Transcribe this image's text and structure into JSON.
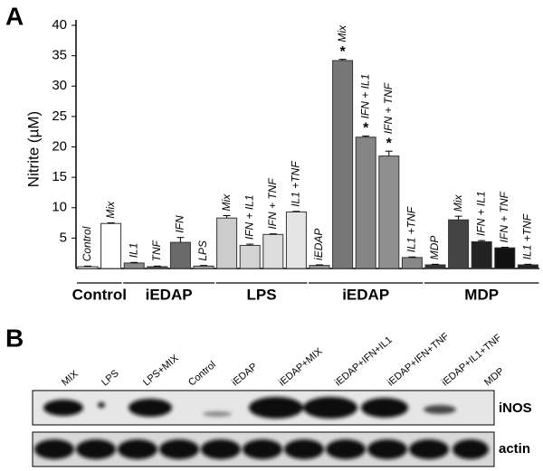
{
  "chart_data": {
    "type": "bar",
    "label": "A",
    "ylabel": "Nitrite (µM)",
    "ylim": [
      0,
      40
    ],
    "yticks": [
      5,
      10,
      15,
      20,
      25,
      30,
      35,
      40
    ],
    "groups": [
      {
        "name": "Control",
        "categories": [
          "Control",
          "Mix"
        ],
        "values": [
          0.3,
          7.4
        ],
        "errors": [
          0.1,
          0.1
        ],
        "colors": [
          "#ffffff",
          "#ffffff"
        ],
        "markers": [
          null,
          null
        ]
      },
      {
        "name": "iEDAP",
        "categories": [
          "IL1",
          "TNF",
          "IFN",
          "LPS"
        ],
        "values": [
          0.9,
          0.3,
          4.3,
          0.4
        ],
        "errors": [
          0.1,
          0.1,
          0.8,
          0.1
        ],
        "colors": [
          "#8a8a8a",
          "#555555",
          "#6a6a6a",
          "#aaaaaa"
        ],
        "markers": [
          null,
          null,
          null,
          null
        ]
      },
      {
        "name": "LPS",
        "categories": [
          "Mix",
          "IFN + IL1",
          "IFN + TNF",
          "IL1 +TNF"
        ],
        "values": [
          8.3,
          3.8,
          5.6,
          9.3
        ],
        "errors": [
          0.4,
          0.2,
          0.1,
          0.1
        ],
        "colors": [
          "#cccccc",
          "#d4d4d4",
          "#dddddd",
          "#e4e4e4"
        ],
        "markers": [
          null,
          null,
          null,
          null
        ]
      },
      {
        "name": "iEDAP",
        "categories": [
          "iEDAP",
          "Mix",
          "IFN + IL1",
          "IFN + TNF",
          "IL1 +TNF"
        ],
        "values": [
          0.5,
          34.2,
          21.6,
          18.5,
          1.8
        ],
        "errors": [
          0.1,
          0.2,
          0.2,
          0.8,
          0.1
        ],
        "colors": [
          "#999999",
          "#777777",
          "#858585",
          "#8f8f8f",
          "#888888"
        ],
        "markers": [
          null,
          "*",
          "*",
          "*",
          null
        ]
      },
      {
        "name": "MDP",
        "categories": [
          "MDP",
          "Mix",
          "IFN + IL1",
          "IFN + TNF",
          "IL1 +TNF"
        ],
        "values": [
          0.6,
          8.0,
          4.4,
          3.4,
          0.6
        ],
        "errors": [
          0.1,
          0.6,
          0.2,
          0.1,
          0.1
        ],
        "colors": [
          "#333333",
          "#444444",
          "#222222",
          "#111111",
          "#222222"
        ],
        "markers": [
          null,
          null,
          null,
          null,
          null
        ]
      }
    ]
  },
  "blot": {
    "label": "B",
    "lanes": [
      "MIX",
      "LPS",
      "LPS+MIX",
      "Control",
      "iEDAP",
      "iEDAP+MIX",
      "iEDAP+IFN+IL1",
      "iEDAP+IFN+TNF",
      "iEDAP+IL1+TNF",
      "MDP"
    ],
    "rows": [
      "iNOS",
      "actin"
    ]
  }
}
